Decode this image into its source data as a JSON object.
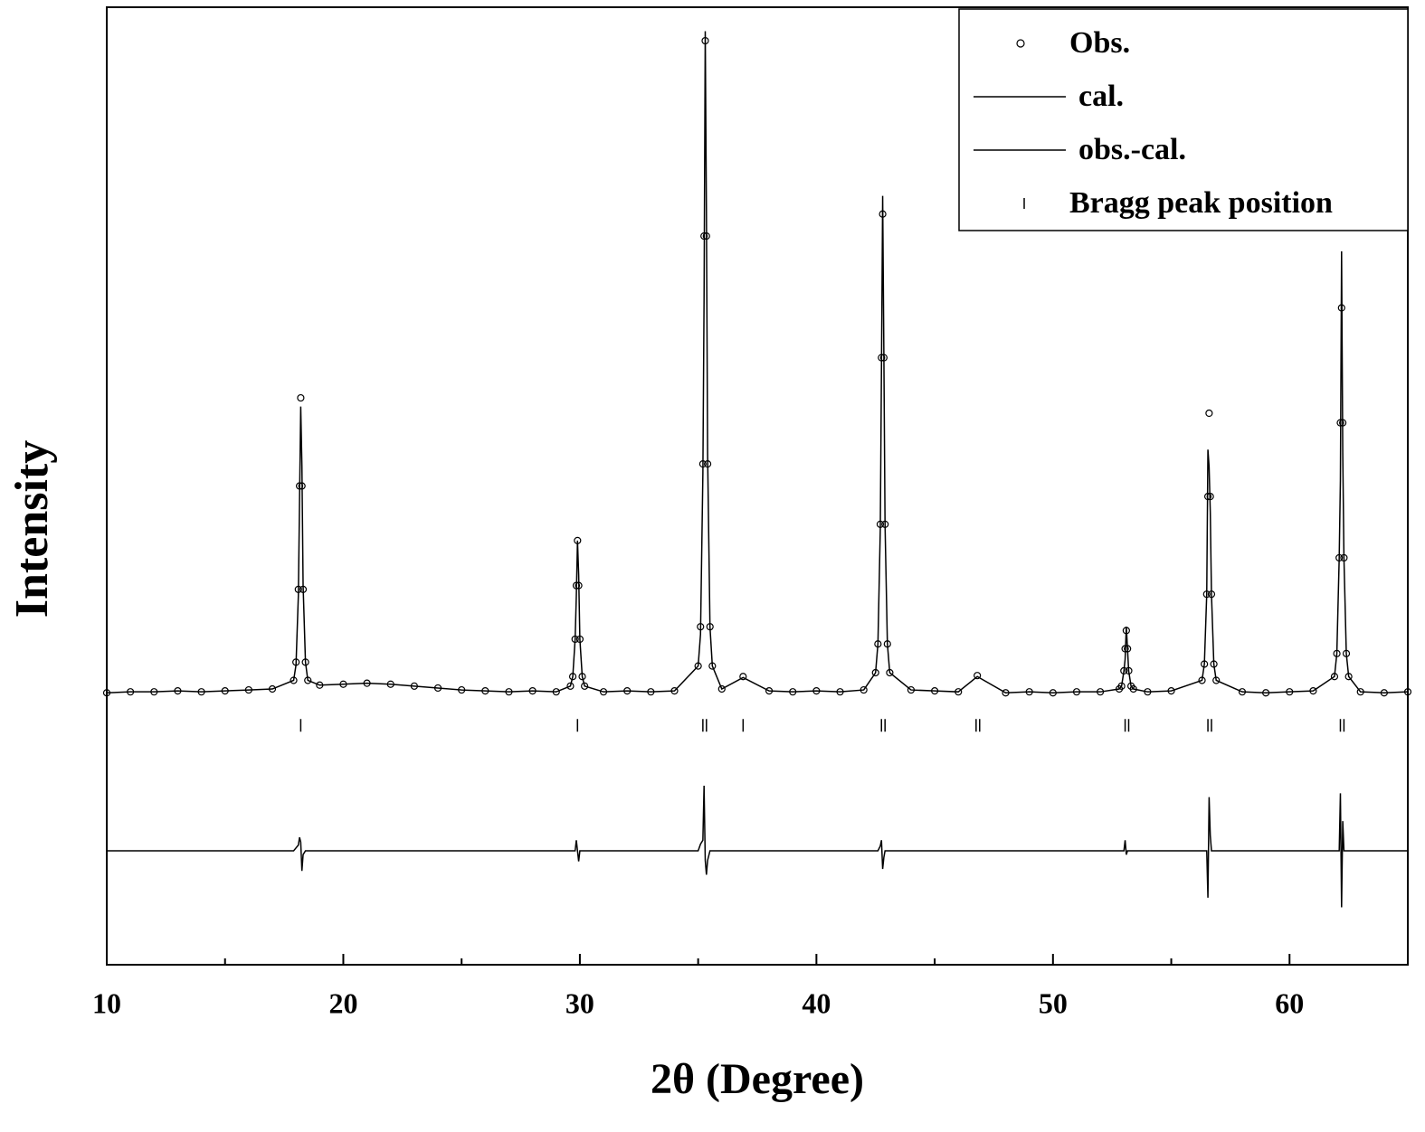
{
  "chart_data": {
    "type": "line",
    "xlabel": "2θ (Degree)",
    "ylabel": "Intensity",
    "xlim": [
      10,
      65
    ],
    "ylim": [
      0,
      100
    ],
    "xticks": [
      10,
      20,
      30,
      40,
      50,
      60
    ],
    "xminorticks": [
      15,
      25,
      35,
      45,
      55,
      65
    ],
    "legend": "upper right",
    "x": [
      10,
      11,
      12,
      13,
      14,
      15,
      16,
      17,
      17.9,
      18.0,
      18.1,
      18.15,
      18.2,
      18.25,
      18.3,
      18.4,
      18.5,
      19,
      20,
      21,
      22,
      23,
      24,
      25,
      26,
      27,
      28,
      29,
      29.6,
      29.7,
      29.8,
      29.85,
      29.9,
      29.95,
      30.0,
      30.1,
      30.2,
      31,
      32,
      33,
      34,
      35.0,
      35.1,
      35.2,
      35.25,
      35.3,
      35.35,
      35.4,
      35.5,
      35.6,
      36,
      36.9,
      38,
      39,
      40,
      41,
      42,
      42.5,
      42.6,
      42.7,
      42.75,
      42.8,
      42.85,
      42.9,
      43.0,
      43.1,
      44,
      45,
      46,
      46.8,
      48,
      49,
      50,
      51,
      52,
      52.8,
      52.9,
      53.0,
      53.05,
      53.1,
      53.15,
      53.2,
      53.3,
      53.4,
      54,
      55,
      56.3,
      56.4,
      56.5,
      56.55,
      56.6,
      56.65,
      56.7,
      56.8,
      56.9,
      58,
      59,
      60,
      61,
      61.9,
      62.0,
      62.1,
      62.15,
      62.2,
      62.25,
      62.3,
      62.4,
      62.5,
      63,
      64,
      65
    ],
    "series": [
      {
        "name": "Obs.",
        "style": "circle",
        "color": "#000000",
        "values": [
          28.4,
          28.5,
          28.5,
          28.6,
          28.5,
          28.6,
          28.7,
          28.8,
          29.7,
          31.6,
          39.2,
          50.0,
          59.2,
          50.0,
          39.2,
          31.6,
          29.7,
          29.2,
          29.3,
          29.4,
          29.3,
          29.1,
          28.9,
          28.7,
          28.6,
          28.5,
          28.6,
          28.5,
          29.1,
          30.1,
          34.0,
          39.6,
          44.3,
          39.6,
          34.0,
          30.1,
          29.1,
          28.5,
          28.6,
          28.5,
          28.6,
          31.2,
          35.3,
          52.3,
          76.1,
          96.5,
          76.1,
          52.3,
          35.3,
          31.2,
          28.8,
          30.1,
          28.6,
          28.5,
          28.6,
          28.5,
          28.7,
          30.5,
          33.5,
          46.0,
          63.4,
          78.4,
          63.4,
          46.0,
          33.5,
          30.5,
          28.7,
          28.6,
          28.5,
          30.2,
          28.4,
          28.5,
          28.4,
          28.5,
          28.5,
          28.8,
          29.1,
          30.7,
          33.0,
          34.9,
          33.0,
          30.7,
          29.1,
          28.8,
          28.5,
          28.6,
          29.7,
          31.4,
          38.7,
          48.9,
          57.6,
          48.9,
          38.7,
          31.4,
          29.7,
          28.5,
          28.4,
          28.5,
          28.6,
          30.1,
          32.5,
          42.5,
          56.6,
          68.6,
          56.6,
          42.5,
          32.5,
          30.1,
          28.5,
          28.4,
          28.5
        ]
      },
      {
        "name": "cal.",
        "style": "line",
        "color": "#000000",
        "values": [
          28.4,
          28.5,
          28.5,
          28.6,
          28.5,
          28.6,
          28.7,
          28.8,
          29.7,
          31.3,
          38.6,
          48.6,
          58.3,
          52.1,
          39.6,
          31.6,
          29.7,
          29.2,
          29.3,
          29.4,
          29.3,
          29.1,
          28.9,
          28.7,
          28.6,
          28.5,
          28.6,
          28.5,
          29.1,
          30.1,
          34.0,
          38.5,
          44.3,
          40.7,
          34.0,
          30.1,
          29.1,
          28.5,
          28.6,
          28.5,
          28.6,
          31.2,
          34.5,
          51.3,
          69.4,
          97.5,
          78.6,
          53.3,
          35.3,
          31.2,
          28.8,
          30.0,
          28.6,
          28.5,
          28.6,
          28.5,
          28.7,
          30.5,
          33.5,
          45.5,
          62.3,
          80.3,
          64.1,
          46.0,
          33.5,
          30.5,
          28.7,
          28.6,
          28.5,
          30.1,
          28.4,
          28.5,
          28.4,
          28.5,
          28.5,
          28.8,
          29.1,
          30.7,
          31.9,
          35.3,
          33.0,
          30.7,
          29.1,
          28.8,
          28.5,
          28.6,
          29.7,
          31.4,
          38.7,
          53.8,
          52.0,
          47.3,
          38.7,
          31.4,
          29.7,
          28.5,
          28.4,
          28.5,
          28.6,
          30.1,
          32.5,
          42.5,
          50.6,
          74.5,
          53.5,
          42.5,
          32.5,
          30.1,
          28.5,
          28.4,
          28.5
        ]
      },
      {
        "name": "obs.-cal.",
        "style": "line",
        "color": "#000000",
        "values": [
          11.9,
          11.9,
          11.9,
          11.9,
          11.9,
          11.9,
          11.9,
          11.9,
          11.9,
          12.2,
          12.5,
          13.3,
          12.8,
          9.8,
          11.5,
          11.9,
          11.9,
          11.9,
          11.9,
          11.9,
          11.9,
          11.9,
          11.9,
          11.9,
          11.9,
          11.9,
          11.9,
          11.9,
          11.9,
          11.9,
          11.9,
          13.0,
          11.9,
          10.8,
          11.9,
          11.9,
          11.9,
          11.9,
          11.9,
          11.9,
          11.9,
          11.9,
          12.6,
          13.0,
          18.7,
          10.9,
          9.4,
          10.9,
          11.9,
          11.9,
          11.9,
          11.9,
          11.9,
          11.9,
          11.9,
          11.9,
          11.9,
          11.9,
          11.9,
          12.4,
          13.0,
          10.0,
          11.2,
          11.9,
          11.9,
          11.9,
          11.9,
          11.9,
          11.9,
          11.9,
          11.9,
          11.9,
          11.9,
          11.9,
          11.9,
          11.9,
          11.9,
          11.9,
          13.0,
          11.5,
          11.9,
          11.9,
          11.9,
          11.9,
          11.9,
          11.9,
          11.9,
          11.9,
          11.9,
          7.0,
          17.5,
          13.5,
          11.9,
          11.9,
          11.9,
          11.9,
          11.9,
          11.9,
          11.9,
          11.9,
          11.9,
          11.9,
          17.9,
          6.0,
          15.0,
          11.9,
          11.9,
          11.9,
          11.9,
          11.9,
          11.9
        ]
      },
      {
        "name": "Bragg peak position",
        "style": "tick",
        "color": "#000000",
        "x": [
          18.2,
          29.9,
          35.2,
          35.35,
          36.9,
          42.75,
          42.9,
          46.75,
          46.9,
          53.05,
          53.2,
          56.55,
          56.7,
          62.15,
          62.3
        ],
        "values": [
          25,
          25,
          25,
          25,
          25,
          25,
          25,
          25,
          25,
          25,
          25,
          25,
          25,
          25,
          25
        ]
      }
    ]
  }
}
